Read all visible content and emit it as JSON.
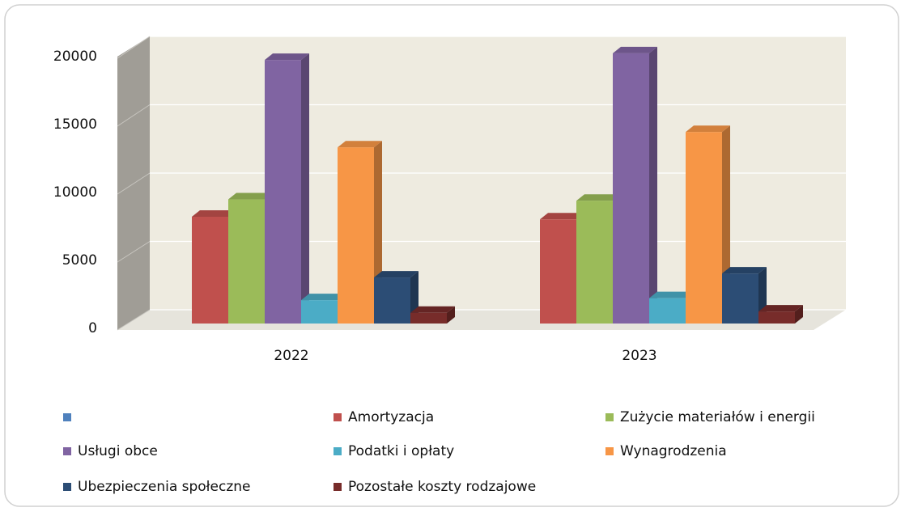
{
  "chart_data": {
    "type": "bar3d",
    "categories": [
      "2022",
      "2023"
    ],
    "series": [
      {
        "color": "#4f81bd",
        "values": [
          null,
          null
        ]
      },
      {
        "name": "Amortyzacja",
        "color": "#c0504d",
        "values": [
          8000,
          7800
        ]
      },
      {
        "name": "Zużycie materiałów i energii",
        "color": "#9bbb59",
        "values": [
          9300,
          9200
        ]
      },
      {
        "name": "Usługi obce",
        "color": "#8064a2",
        "values": [
          19750,
          20250
        ]
      },
      {
        "name": "Podatki i opłaty",
        "color": "#4bacc6",
        "values": [
          1750,
          1900
        ]
      },
      {
        "name": "Wynagrodzenia",
        "color": "#f79646",
        "values": [
          13200,
          14350
        ]
      },
      {
        "name": "Ubezpieczenia społeczne",
        "color": "#2c4d75",
        "values": [
          3450,
          3750
        ]
      },
      {
        "name": "Pozostałe koszty rodzajowe",
        "color": "#772c2a",
        "values": [
          800,
          900
        ]
      }
    ],
    "ylim": [
      0,
      20000
    ],
    "yticks": [
      0,
      5000,
      10000,
      15000,
      20000
    ],
    "grid": true
  }
}
